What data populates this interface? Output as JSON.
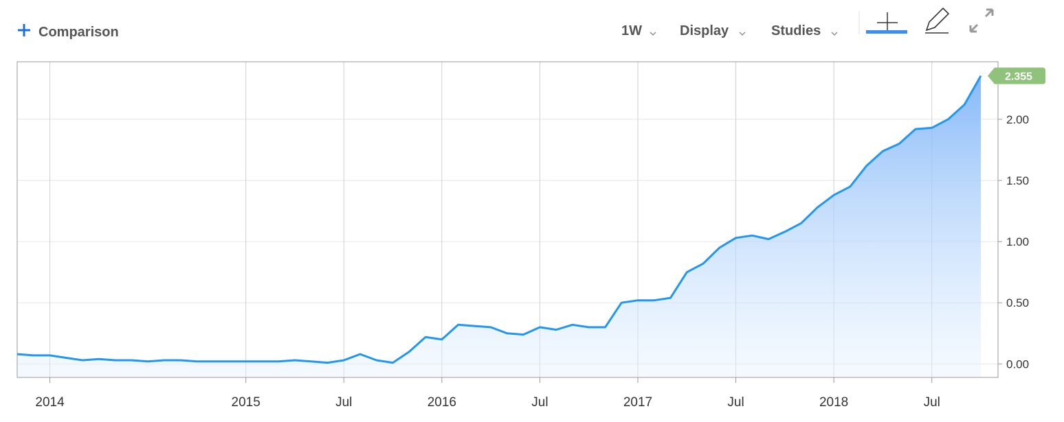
{
  "toolbar": {
    "comparison": "Comparison",
    "interval": "1W",
    "display": "Display",
    "studies": "Studies"
  },
  "chart_data": {
    "type": "area",
    "x": [
      "2013-11",
      "2013-12",
      "2014-01",
      "2014-02",
      "2014-03",
      "2014-04",
      "2014-05",
      "2014-06",
      "2014-07",
      "2014-08",
      "2014-09",
      "2014-10",
      "2014-11",
      "2014-12",
      "2015-01",
      "2015-02",
      "2015-03",
      "2015-04",
      "2015-05",
      "2015-06",
      "2015-07",
      "2015-08",
      "2015-09",
      "2015-10",
      "2015-11",
      "2015-12",
      "2016-01",
      "2016-02",
      "2016-03",
      "2016-04",
      "2016-05",
      "2016-06",
      "2016-07",
      "2016-08",
      "2016-09",
      "2016-10",
      "2016-11",
      "2016-12",
      "2017-01",
      "2017-02",
      "2017-03",
      "2017-04",
      "2017-05",
      "2017-06",
      "2017-07",
      "2017-08",
      "2017-09",
      "2017-10",
      "2017-11",
      "2017-12",
      "2018-01",
      "2018-02",
      "2018-03",
      "2018-04",
      "2018-05",
      "2018-06",
      "2018-07",
      "2018-08",
      "2018-09",
      "2018-10"
    ],
    "series": [
      {
        "color": "#2196f3",
        "values": [
          0.08,
          0.07,
          0.07,
          0.05,
          0.03,
          0.04,
          0.03,
          0.03,
          0.02,
          0.03,
          0.03,
          0.02,
          0.02,
          0.02,
          0.02,
          0.02,
          0.02,
          0.03,
          0.02,
          0.01,
          0.03,
          0.08,
          0.03,
          0.01,
          0.1,
          0.22,
          0.2,
          0.32,
          0.31,
          0.3,
          0.25,
          0.24,
          0.3,
          0.28,
          0.32,
          0.3,
          0.3,
          0.5,
          0.52,
          0.52,
          0.54,
          0.75,
          0.82,
          0.95,
          1.03,
          1.05,
          1.02,
          1.08,
          1.15,
          1.28,
          1.38,
          1.45,
          1.62,
          1.74,
          1.8,
          1.92,
          1.93,
          2.0,
          2.12,
          2.355
        ],
        "last_value_label": "2.355"
      }
    ],
    "xlim": [
      "2013-11",
      "2018-10"
    ],
    "xticks": [
      {
        "value": "2014-01",
        "label": "2014"
      },
      {
        "value": "2015-01",
        "label": "2015"
      },
      {
        "value": "2015-07",
        "label": "Jul"
      },
      {
        "value": "2016-01",
        "label": "2016"
      },
      {
        "value": "2016-07",
        "label": "Jul"
      },
      {
        "value": "2017-01",
        "label": "2017"
      },
      {
        "value": "2017-07",
        "label": "Jul"
      },
      {
        "value": "2018-01",
        "label": "2018"
      },
      {
        "value": "2018-07",
        "label": "Jul"
      }
    ],
    "ylim": [
      -0.11,
      2.47
    ],
    "yticks": [
      {
        "value": 0,
        "label": "0.00"
      },
      {
        "value": 0.5,
        "label": "0.50"
      },
      {
        "value": 1,
        "label": "1.00"
      },
      {
        "value": 1.5,
        "label": "1.50"
      },
      {
        "value": 2,
        "label": "2.00"
      }
    ],
    "grid": true
  }
}
